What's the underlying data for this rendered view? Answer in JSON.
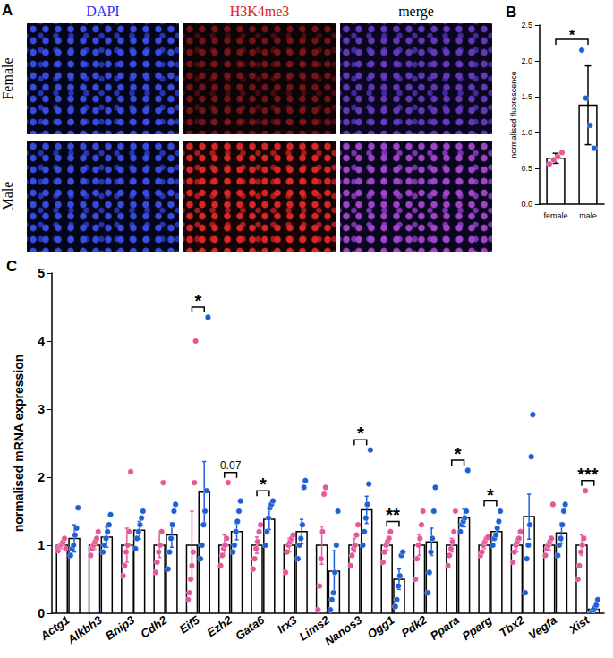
{
  "image_panel": {
    "title": "A",
    "columns": [
      "DAPI",
      "H3K4me3",
      "merge"
    ],
    "colors": [
      "#2f2fff",
      "#e02424",
      "#000000"
    ],
    "rows": [
      "Female",
      "Male"
    ]
  },
  "chart_data": [
    {
      "type": "bar",
      "title": "B",
      "y_label": "normalised fluorescence",
      "categories": [
        "female",
        "male"
      ],
      "values": [
        0.64,
        1.38
      ],
      "errors": [
        0.07,
        0.55
      ],
      "points": [
        [
          0.56,
          0.62,
          0.66,
          0.72
        ],
        [
          2.15,
          1.48,
          1.1,
          0.78
        ]
      ],
      "colors": [
        "#e8569a",
        "#1f5fd6"
      ],
      "ylim": [
        0,
        2.5
      ],
      "yticks": [
        {
          "value": 0,
          "label": "0.0"
        },
        {
          "value": 0.5,
          "label": "0.5"
        },
        {
          "value": 1,
          "label": "1.0"
        },
        {
          "value": 1.5,
          "label": "1.5"
        },
        {
          "value": 2,
          "label": "2.0"
        },
        {
          "value": 2.5,
          "label": "2.5"
        }
      ],
      "grid": false,
      "annotations": [
        {
          "from": "female",
          "to": "male",
          "text": "*"
        }
      ]
    },
    {
      "type": "bar",
      "title": "C",
      "y_label": "normalised mRNA expression",
      "categories": [
        "Actg1",
        "Alkbh3",
        "Bnip3",
        "Cdh2",
        "Eif5",
        "Ezh2",
        "Gata6",
        "Irx3",
        "Lims2",
        "Nanos3",
        "Ogg1",
        "Pdk2",
        "Ppara",
        "Pparg",
        "Tbx2",
        "Vegfa",
        "Xist"
      ],
      "series": [
        {
          "color": "#e8569a",
          "values": [
            1,
            1,
            1,
            1,
            1,
            1,
            1,
            1,
            1,
            1,
            1,
            1,
            1,
            1,
            1,
            1,
            1
          ],
          "errors": [
            0.05,
            0.06,
            0.25,
            0.18,
            0.5,
            0.15,
            0.12,
            0.1,
            0.28,
            0.1,
            0.07,
            0.15,
            0.1,
            0.05,
            0.1,
            0.07,
            0.15
          ],
          "points": [
            [
              0.92,
              0.98,
              1.0,
              1.02,
              1.05,
              1.1,
              0.95
            ],
            [
              0.85,
              0.95,
              1.0,
              1.05,
              1.1,
              1.2
            ],
            [
              0.55,
              0.7,
              0.9,
              1.0,
              1.2,
              2.08
            ],
            [
              0.6,
              0.75,
              0.9,
              1.0,
              1.2,
              1.92
            ],
            [
              0.2,
              0.3,
              0.5,
              0.7,
              0.9,
              1.92,
              4.0
            ],
            [
              0.7,
              0.85,
              0.95,
              1.0,
              1.1,
              1.92
            ],
            [
              0.65,
              0.8,
              0.95,
              1.05,
              1.2,
              1.3
            ],
            [
              0.6,
              0.9,
              1.0,
              1.05,
              1.1,
              1.15
            ],
            [
              0.05,
              0.4,
              0.8,
              1.2,
              1.75,
              1.85
            ],
            [
              0.7,
              0.85,
              0.95,
              1.0,
              1.15,
              1.3
            ],
            [
              0.75,
              0.9,
              1.0,
              1.05,
              1.1,
              1.2
            ],
            [
              0.5,
              0.8,
              1.0,
              1.1,
              1.3,
              1.5
            ],
            [
              0.7,
              0.85,
              0.95,
              1.05,
              1.2,
              1.5
            ],
            [
              0.85,
              0.9,
              1.0,
              1.05,
              1.1,
              1.12
            ],
            [
              0.75,
              0.9,
              1.0,
              1.05,
              1.1,
              1.2
            ],
            [
              0.85,
              0.95,
              1.0,
              1.05,
              1.1,
              1.6
            ],
            [
              0.5,
              0.7,
              0.9,
              1.0,
              1.1,
              1.8
            ]
          ]
        },
        {
          "color": "#1f5fd6",
          "values": [
            1.1,
            1.12,
            1.22,
            1.15,
            1.78,
            1.2,
            1.38,
            1.2,
            0.62,
            1.52,
            0.5,
            1.05,
            1.4,
            1.2,
            1.42,
            1.18,
            0.06
          ],
          "errors": [
            0.2,
            0.15,
            0.13,
            0.18,
            0.45,
            0.12,
            0.15,
            0.18,
            0.3,
            0.2,
            0.15,
            0.2,
            0.13,
            0.07,
            0.33,
            0.15,
            0.03
          ],
          "points": [
            [
              0.85,
              0.95,
              1.0,
              1.15,
              1.25,
              1.55
            ],
            [
              0.9,
              1.0,
              1.1,
              1.2,
              1.3,
              1.45
            ],
            [
              0.95,
              1.1,
              1.2,
              1.3,
              1.4,
              1.5
            ],
            [
              0.65,
              0.9,
              1.1,
              1.3,
              1.5,
              1.6
            ],
            [
              0.8,
              1.0,
              1.3,
              1.5,
              1.8,
              4.35
            ],
            [
              0.9,
              1.0,
              1.2,
              1.35,
              1.5,
              1.65
            ],
            [
              1.0,
              1.2,
              1.4,
              1.55,
              1.6,
              1.65
            ],
            [
              0.8,
              1.0,
              1.1,
              1.3,
              1.85,
              1.95
            ],
            [
              0.05,
              0.2,
              0.3,
              0.6,
              1.0,
              1.5
            ],
            [
              1.0,
              1.2,
              1.4,
              1.6,
              1.9,
              2.4
            ],
            [
              0.1,
              0.2,
              0.4,
              0.55,
              0.85,
              0.9
            ],
            [
              0.3,
              0.6,
              0.9,
              1.1,
              1.5,
              1.85
            ],
            [
              1.2,
              1.3,
              1.35,
              1.4,
              1.5,
              2.1
            ],
            [
              1.0,
              1.1,
              1.15,
              1.25,
              1.35,
              1.5
            ],
            [
              0.3,
              0.8,
              1.0,
              1.3,
              2.3,
              2.92
            ],
            [
              0.85,
              1.0,
              1.1,
              1.3,
              1.5,
              1.6
            ],
            [
              0.0,
              0.02,
              0.05,
              0.08,
              0.12,
              0.2
            ]
          ]
        }
      ],
      "ylim": [
        0,
        5
      ],
      "yticks": [
        0,
        1,
        2,
        3,
        4,
        5
      ],
      "grid": false,
      "annotations": [
        {
          "category": "Eif5",
          "text": "*"
        },
        {
          "category": "Ezh2",
          "text": "0.07"
        },
        {
          "category": "Gata6",
          "text": "*"
        },
        {
          "category": "Nanos3",
          "text": "*"
        },
        {
          "category": "Ogg1",
          "text": "**"
        },
        {
          "category": "Ppara",
          "text": "*"
        },
        {
          "category": "Pparg",
          "text": "*"
        },
        {
          "category": "Xist",
          "text": "***"
        }
      ]
    }
  ]
}
